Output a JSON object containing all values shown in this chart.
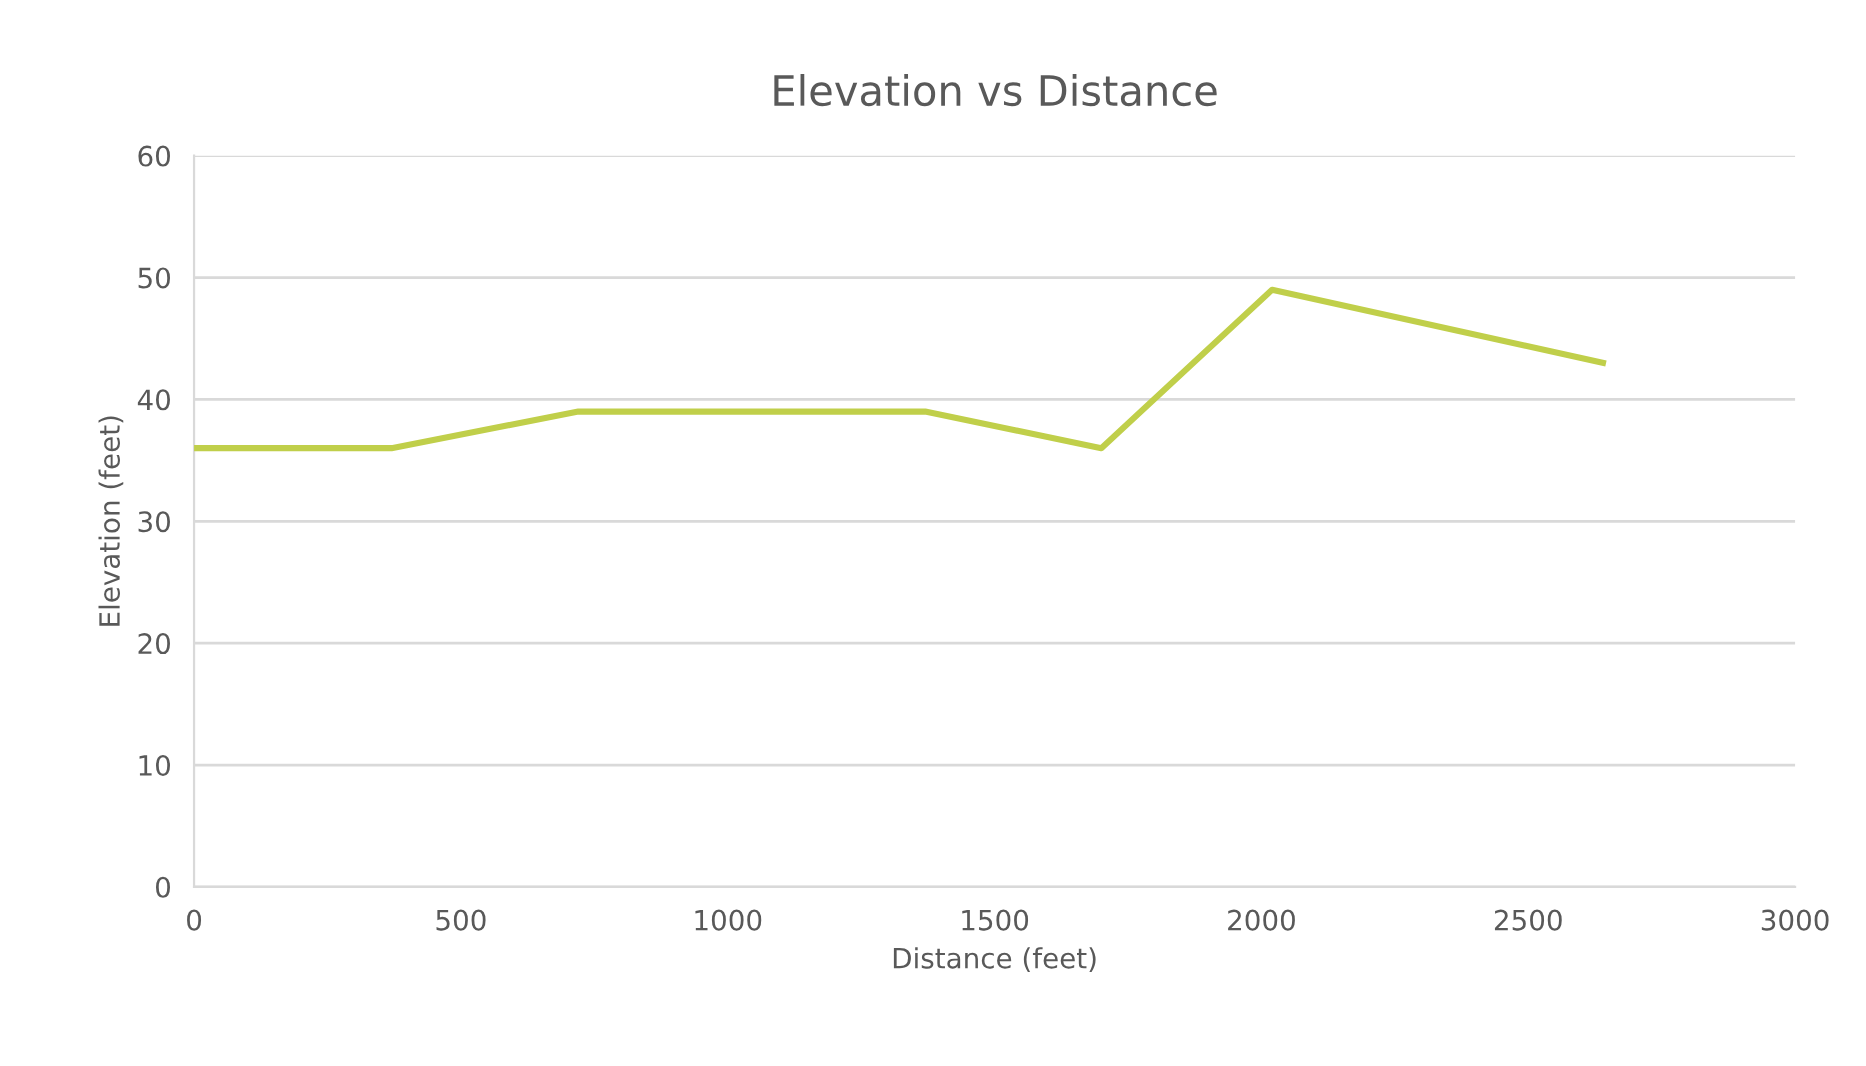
{
  "chart_data": {
    "type": "line",
    "title": "Elevation vs Distance",
    "xlabel": "Distance (feet)",
    "ylabel": "Elevation (feet)",
    "x": [
      0,
      370,
      720,
      1370,
      1700,
      2020,
      2640
    ],
    "series": [
      {
        "color": "#c0cf4a",
        "values": [
          36,
          36,
          39,
          39,
          36,
          49,
          43
        ]
      }
    ],
    "xlim": [
      0,
      3000
    ],
    "xticks": [
      0,
      500,
      1000,
      1500,
      2000,
      2500,
      3000
    ],
    "ylim": [
      0,
      60
    ],
    "yticks": [
      0,
      10,
      20,
      30,
      40,
      50,
      60
    ],
    "grid": "y",
    "legend": false,
    "marker": "none",
    "line_style": "solid"
  }
}
